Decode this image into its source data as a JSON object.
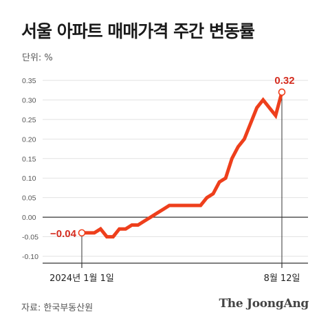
{
  "header": {
    "title": "서울 아파트 매매가격 주간 변동률",
    "unit": "단위: %"
  },
  "footer": {
    "source": "자료: 한국부동산원",
    "brand": "The JoongAng"
  },
  "colors": {
    "line": "#ee3f1c",
    "label": "#d42b1e",
    "grid": "#e2e2e2",
    "zero_line": "#333333"
  },
  "chart_data": {
    "type": "line",
    "title": "서울 아파트 매매가격 주간 변동률",
    "ylabel": "단위: %",
    "ylim": [
      -0.1,
      0.35
    ],
    "yticks": [
      -0.1,
      -0.05,
      0.0,
      0.05,
      0.1,
      0.15,
      0.2,
      0.25,
      0.3,
      0.35
    ],
    "ytick_labels": [
      "-0.10",
      "-0.05",
      "0.00",
      "0.05",
      "0.10",
      "0.15",
      "0.20",
      "0.25",
      "0.30",
      "0.35"
    ],
    "x_labels": [
      {
        "index": 0,
        "text": "2024년 1월 1일"
      },
      {
        "index": 32,
        "text": "8월 12일"
      }
    ],
    "grid": true,
    "series": [
      {
        "values": [
          -0.04,
          -0.04,
          -0.04,
          -0.03,
          -0.05,
          -0.05,
          -0.03,
          -0.03,
          -0.02,
          -0.02,
          -0.01,
          0.0,
          0.01,
          0.02,
          0.03,
          0.03,
          0.03,
          0.03,
          0.03,
          0.03,
          0.05,
          0.06,
          0.09,
          0.1,
          0.15,
          0.18,
          0.2,
          0.24,
          0.28,
          0.3,
          0.28,
          0.26,
          0.32
        ]
      }
    ],
    "annotations": [
      {
        "index": 0,
        "text": "−0.04"
      },
      {
        "index": 32,
        "text": "0.32"
      }
    ]
  }
}
